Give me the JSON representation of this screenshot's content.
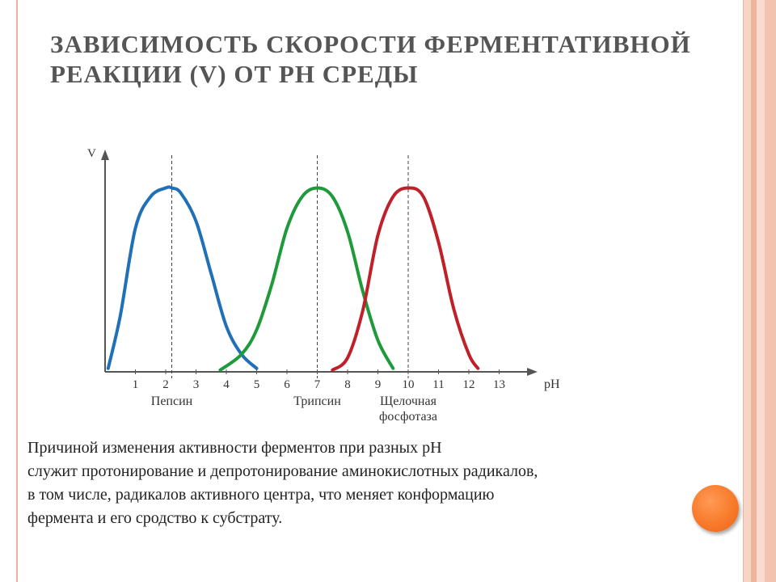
{
  "slide": {
    "title": "ЗАВИСИМОСТЬ СКОРОСТИ ФЕРМЕНТАТИВНОЙ РЕАКЦИИ (V) ОТ PH СРЕДЫ",
    "caption_lines": [
      "Причиной изменения активности ферментов при разных pH",
      "служит протонирование и депротонирование аминокислотных радикалов,",
      "в том числе, радикалов активного центра, что меняет конформацию",
      "фермента и его сродство к субстрату."
    ],
    "colors": {
      "frame": "#e8b4a0",
      "stripe_light": "#f7d4c4",
      "stripe_dark": "#eeb59d",
      "orb": "#f87a2a"
    }
  },
  "chart_data": {
    "type": "line",
    "title": "",
    "xlabel": "pH",
    "ylabel": "V",
    "xlim": [
      0,
      14
    ],
    "ylim": [
      0,
      1.2
    ],
    "x_ticks": [
      1,
      2,
      3,
      4,
      5,
      6,
      7,
      8,
      9,
      10,
      11,
      12,
      13
    ],
    "grid": false,
    "legend": "below x-axis",
    "series": [
      {
        "name": "Пепсин",
        "color": "#2070b8",
        "optimum_ph": 2.2,
        "labels": [
          "Пепсин"
        ],
        "x": [
          0.1,
          0.5,
          1.0,
          1.5,
          2.0,
          2.2,
          2.5,
          3.0,
          3.5,
          4.0,
          4.5,
          5.0
        ],
        "y": [
          0.02,
          0.32,
          0.82,
          1.0,
          1.05,
          1.05,
          1.02,
          0.86,
          0.56,
          0.26,
          0.1,
          0.02
        ]
      },
      {
        "name": "Трипсин",
        "color": "#1e9a3a",
        "optimum_ph": 7.0,
        "labels": [
          "Трипсин"
        ],
        "x": [
          3.8,
          4.5,
          5.0,
          5.5,
          6.0,
          6.5,
          7.0,
          7.5,
          8.0,
          8.5,
          9.0,
          9.5
        ],
        "y": [
          0.01,
          0.1,
          0.24,
          0.5,
          0.82,
          1.0,
          1.05,
          1.0,
          0.8,
          0.46,
          0.18,
          0.02
        ]
      },
      {
        "name": "Щелочная фосфотаза",
        "color": "#c0202a",
        "optimum_ph": 10.0,
        "labels": [
          "Щелочная",
          "фосфотаза"
        ],
        "x": [
          7.5,
          8.0,
          8.5,
          9.0,
          9.5,
          10.0,
          10.5,
          11.0,
          11.5,
          12.0,
          12.3
        ],
        "y": [
          0.01,
          0.08,
          0.35,
          0.78,
          1.0,
          1.05,
          1.0,
          0.74,
          0.36,
          0.1,
          0.02
        ]
      }
    ]
  }
}
